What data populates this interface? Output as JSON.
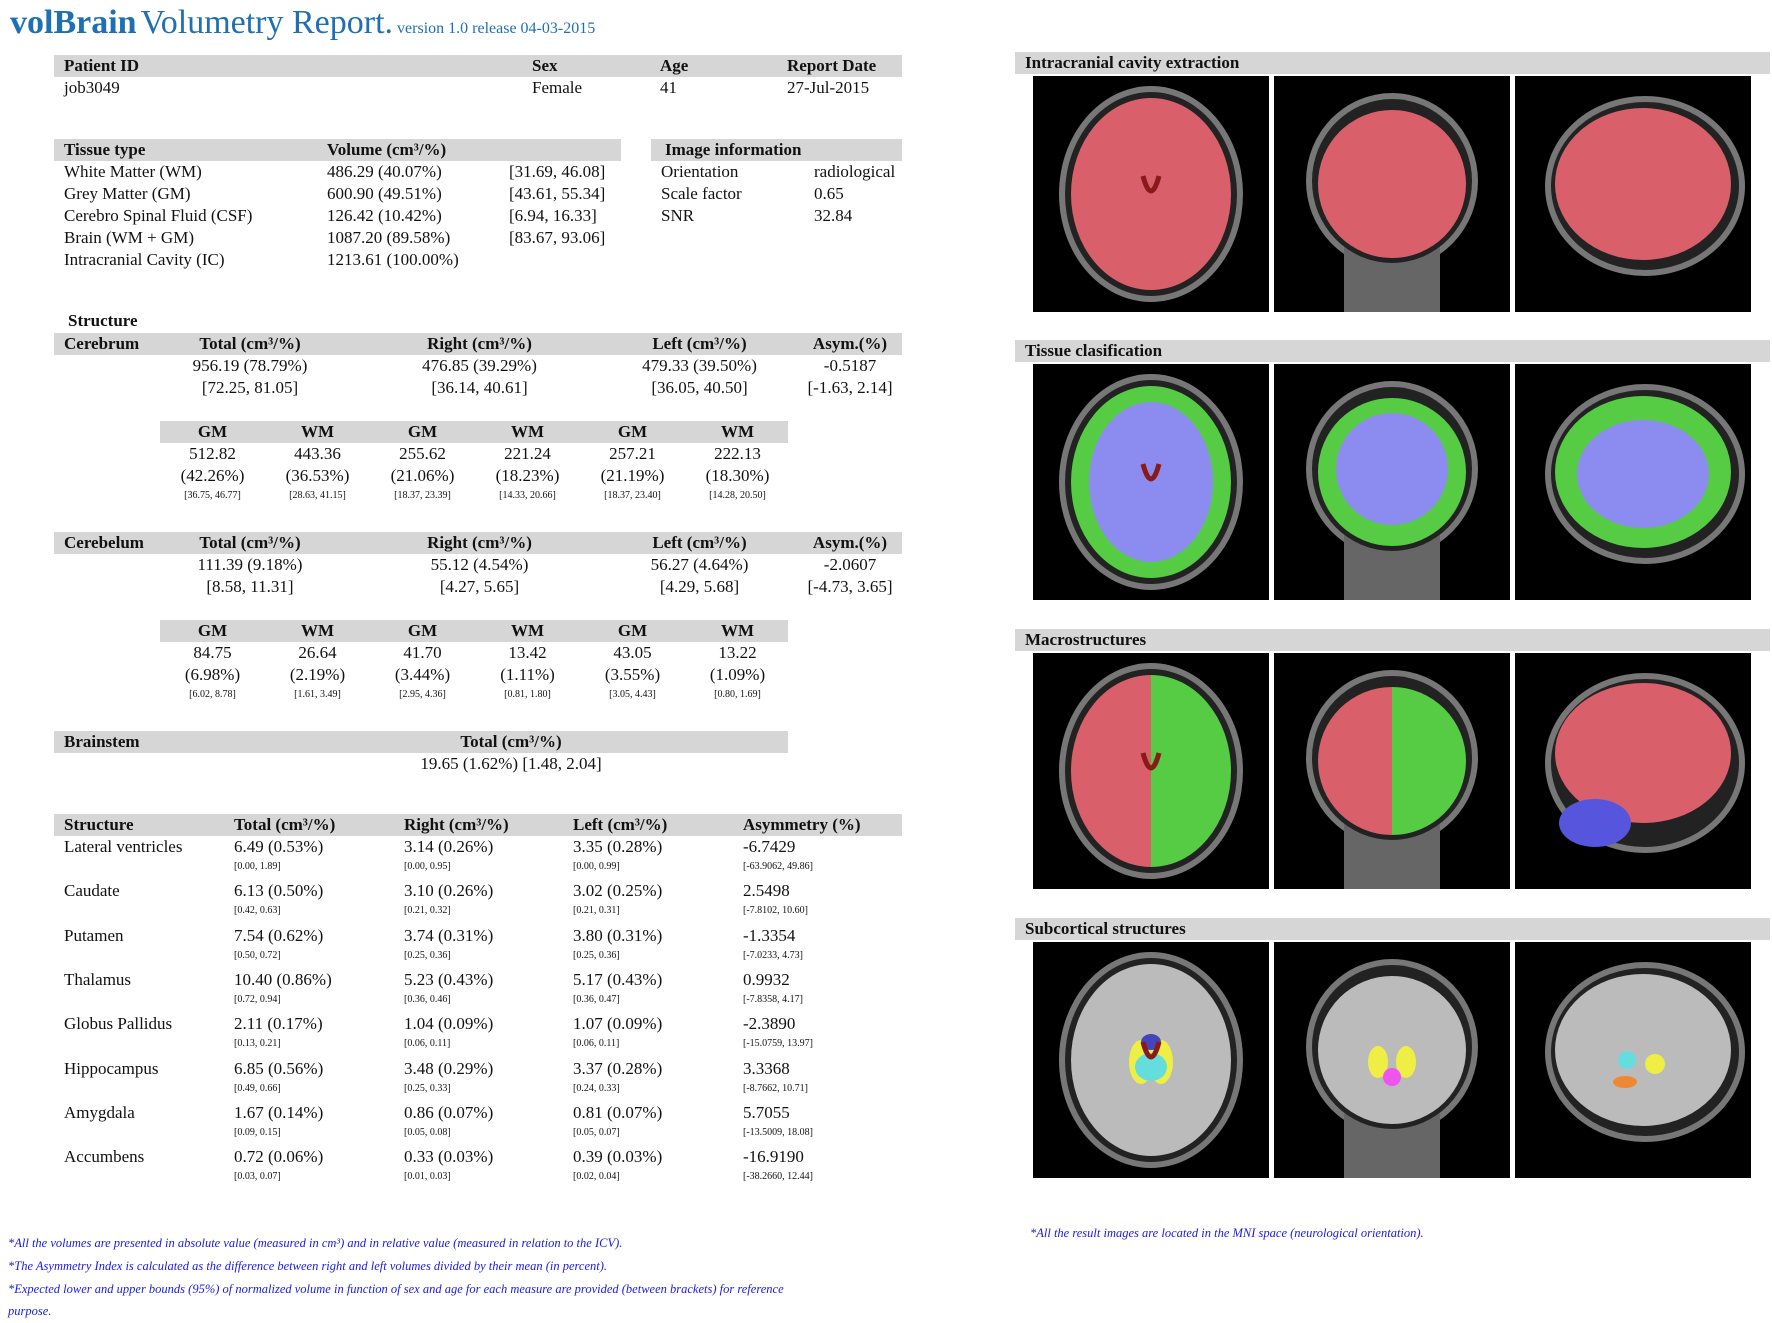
{
  "title": {
    "brand": "volBrain",
    "main": "Volumetry Report.",
    "version": "version 1.0 release 04-03-2015"
  },
  "patient": {
    "headers": [
      "Patient ID",
      "Sex",
      "Age",
      "Report Date"
    ],
    "values": [
      "job3049",
      "Female",
      "41",
      "27-Jul-2015"
    ]
  },
  "tissue": {
    "header_type": "Tissue type",
    "header_volume": "Volume (cm³/%)",
    "rows": [
      {
        "name": "White Matter (WM)",
        "volume": "486.29 (40.07%)",
        "range": "[31.69, 46.08]"
      },
      {
        "name": "Grey Matter (GM)",
        "volume": "600.90 (49.51%)",
        "range": "[43.61, 55.34]"
      },
      {
        "name": "Cerebro Spinal Fluid (CSF)",
        "volume": "126.42 (10.42%)",
        "range": "[6.94, 16.33]"
      },
      {
        "name": "Brain (WM + GM)",
        "volume": "1087.20 (89.58%)",
        "range": "[83.67, 93.06]"
      },
      {
        "name": "Intracranial Cavity (IC)",
        "volume": "1213.61 (100.00%)",
        "range": ""
      }
    ]
  },
  "image_info": {
    "header": "Image information",
    "rows": [
      {
        "label": "Orientation",
        "value": "radiological"
      },
      {
        "label": "Scale factor",
        "value": "0.65"
      },
      {
        "label": "SNR",
        "value": "32.84"
      }
    ]
  },
  "structure_label": "Structure",
  "cerebrum": {
    "name": "Cerebrum",
    "headers": [
      "Total (cm³/%)",
      "Right (cm³/%)",
      "Left (cm³/%)",
      "Asym.(%)"
    ],
    "values": [
      "956.19 (78.79%)",
      "476.85 (39.29%)",
      "479.33 (39.50%)",
      "-0.5187"
    ],
    "ranges": [
      "[72.25, 81.05]",
      "[36.14, 40.61]",
      "[36.05, 40.50]",
      "[-1.63, 2.14]"
    ],
    "sub_headers": [
      "GM",
      "WM",
      "GM",
      "WM",
      "GM",
      "WM"
    ],
    "sub_values": [
      "512.82",
      "443.36",
      "255.62",
      "221.24",
      "257.21",
      "222.13"
    ],
    "sub_pcts": [
      "(42.26%)",
      "(36.53%)",
      "(21.06%)",
      "(18.23%)",
      "(21.19%)",
      "(18.30%)"
    ],
    "sub_ranges": [
      "[36.75, 46.77]",
      "[28.63, 41.15]",
      "[18.37, 23.39]",
      "[14.33, 20.66]",
      "[18.37, 23.40]",
      "[14.28, 20.50]"
    ]
  },
  "cerebelum": {
    "name": "Cerebelum",
    "headers": [
      "Total (cm³/%)",
      "Right (cm³/%)",
      "Left (cm³/%)",
      "Asym.(%)"
    ],
    "values": [
      "111.39 (9.18%)",
      "55.12 (4.54%)",
      "56.27 (4.64%)",
      "-2.0607"
    ],
    "ranges": [
      "[8.58, 11.31]",
      "[4.27, 5.65]",
      "[4.29, 5.68]",
      "[-4.73, 3.65]"
    ],
    "sub_headers": [
      "GM",
      "WM",
      "GM",
      "WM",
      "GM",
      "WM"
    ],
    "sub_values": [
      "84.75",
      "26.64",
      "41.70",
      "13.42",
      "43.05",
      "13.22"
    ],
    "sub_pcts": [
      "(6.98%)",
      "(2.19%)",
      "(3.44%)",
      "(1.11%)",
      "(3.55%)",
      "(1.09%)"
    ],
    "sub_ranges": [
      "[6.02, 8.78]",
      "[1.61, 3.49]",
      "[2.95, 4.36]",
      "[0.81, 1.80]",
      "[3.05, 4.43]",
      "[0.80, 1.69]"
    ]
  },
  "brainstem": {
    "name": "Brainstem",
    "header": "Total (cm³/%)",
    "value": "19.65 (1.62%) [1.48, 2.04]"
  },
  "subcortical": {
    "headers": [
      "Structure",
      "Total (cm³/%)",
      "Right (cm³/%)",
      "Left (cm³/%)",
      "Asymmetry (%)"
    ],
    "rows": [
      {
        "name": "Lateral ventricles",
        "total": "6.49 (0.53%)",
        "right": "3.14 (0.26%)",
        "left": "3.35 (0.28%)",
        "asym": "-6.7429",
        "r_total": "[0.00, 1.89]",
        "r_right": "[0.00, 0.95]",
        "r_left": "[0.00, 0.99]",
        "r_asym": "[-63.9062, 49.86]"
      },
      {
        "name": "Caudate",
        "total": "6.13 (0.50%)",
        "right": "3.10 (0.26%)",
        "left": "3.02 (0.25%)",
        "asym": "2.5498",
        "r_total": "[0.42, 0.63]",
        "r_right": "[0.21, 0.32]",
        "r_left": "[0.21, 0.31]",
        "r_asym": "[-7.8102, 10.60]"
      },
      {
        "name": "Putamen",
        "total": "7.54 (0.62%)",
        "right": "3.74 (0.31%)",
        "left": "3.80 (0.31%)",
        "asym": "-1.3354",
        "r_total": "[0.50, 0.72]",
        "r_right": "[0.25, 0.36]",
        "r_left": "[0.25, 0.36]",
        "r_asym": "[-7.0233, 4.73]"
      },
      {
        "name": "Thalamus",
        "total": "10.40 (0.86%)",
        "right": "5.23 (0.43%)",
        "left": "5.17 (0.43%)",
        "asym": "0.9932",
        "r_total": "[0.72, 0.94]",
        "r_right": "[0.36, 0.46]",
        "r_left": "[0.36, 0.47]",
        "r_asym": "[-7.8358, 4.17]"
      },
      {
        "name": "Globus Pallidus",
        "total": "2.11 (0.17%)",
        "right": "1.04 (0.09%)",
        "left": "1.07 (0.09%)",
        "asym": "-2.3890",
        "r_total": "[0.13, 0.21]",
        "r_right": "[0.06, 0.11]",
        "r_left": "[0.06, 0.11]",
        "r_asym": "[-15.0759, 13.97]"
      },
      {
        "name": "Hippocampus",
        "total": "6.85 (0.56%)",
        "right": "3.48 (0.29%)",
        "left": "3.37 (0.28%)",
        "asym": "3.3368",
        "r_total": "[0.49, 0.66]",
        "r_right": "[0.25, 0.33]",
        "r_left": "[0.24, 0.33]",
        "r_asym": "[-8.7662, 10.71]"
      },
      {
        "name": "Amygdala",
        "total": "1.67 (0.14%)",
        "right": "0.86 (0.07%)",
        "left": "0.81 (0.07%)",
        "asym": "5.7055",
        "r_total": "[0.09, 0.15]",
        "r_right": "[0.05, 0.08]",
        "r_left": "[0.05, 0.07]",
        "r_asym": "[-13.5009, 18.08]"
      },
      {
        "name": "Accumbens",
        "total": "0.72 (0.06%)",
        "right": "0.33 (0.03%)",
        "left": "0.39 (0.03%)",
        "asym": "-16.9190",
        "r_total": "[0.03, 0.07]",
        "r_right": "[0.01, 0.03]",
        "r_left": "[0.02, 0.04]",
        "r_asym": "[-38.2660, 12.44]"
      }
    ]
  },
  "notes": {
    "n1": "*All the volumes are presented in absolute value (measured in cm³) and in relative value (measured in relation to the ICV).",
    "n2": "*The Asymmetry Index is calculated as the difference between right and left volumes divided by their mean (in percent).",
    "n3": "*Expected lower and upper bounds (95%) of normalized volume in function of sex and age for each measure are provided (between brackets) for reference",
    "n3b": "purpose.",
    "right": "*All the result images are located in the MNI space (neurological orientation)."
  },
  "panels": [
    "Intracranial cavity extraction",
    "Tissue clasification",
    "Macrostructures",
    "Subcortical structures"
  ],
  "colors": {
    "title": "#1f6fb5",
    "header_bg": "#d6d6d6",
    "note": "#1a1ae6",
    "icv_red": "#d9606a",
    "wm_blue": "#8c8cf0",
    "gm_green": "#55cc44",
    "csf_dark": "#8a1a1a"
  }
}
